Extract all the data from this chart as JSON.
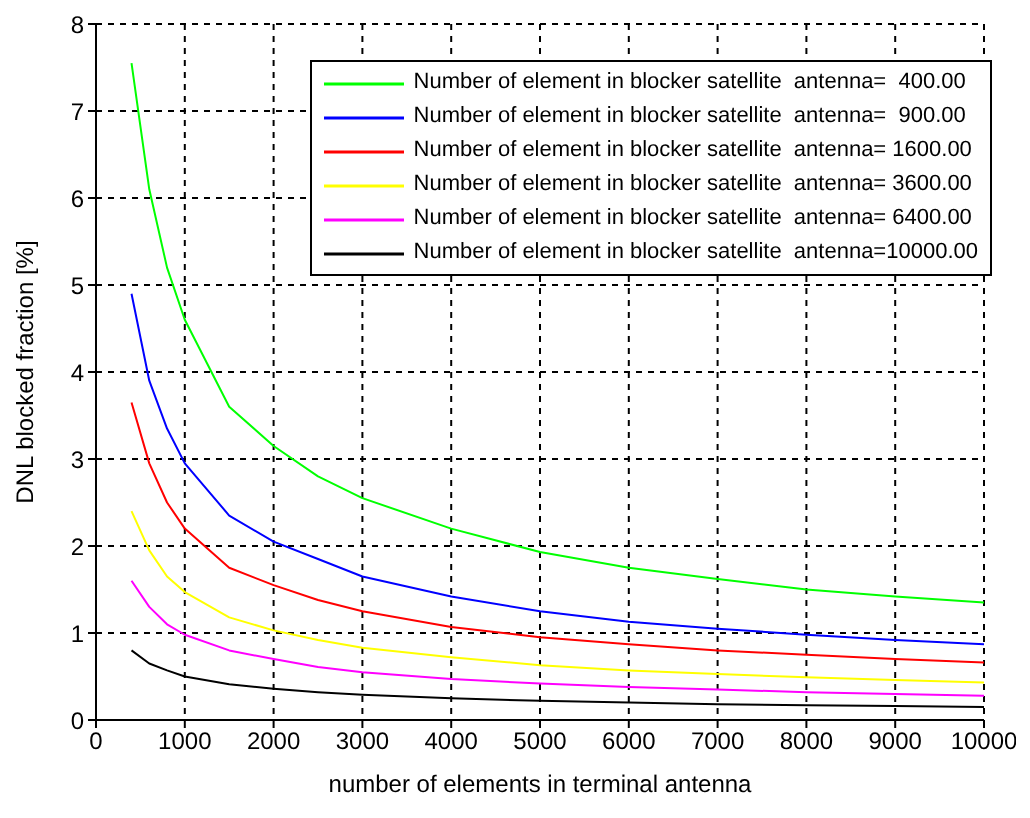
{
  "chart_data": {
    "type": "line",
    "xlabel": "number of elements in terminal antenna",
    "ylabel": "DNL blocked fraction [%]",
    "x": [
      400,
      600,
      800,
      1000,
      1500,
      2000,
      2500,
      3000,
      4000,
      5000,
      6000,
      7000,
      8000,
      9000,
      10000
    ],
    "series": [
      {
        "name": "Number of element in blocker satellite  antenna=  400.00",
        "color": "#00ff00",
        "values": [
          7.55,
          6.1,
          5.2,
          4.6,
          3.6,
          3.15,
          2.8,
          2.55,
          2.2,
          1.93,
          1.75,
          1.62,
          1.5,
          1.42,
          1.35
        ]
      },
      {
        "name": "Number of element in blocker satellite  antenna=  900.00",
        "color": "#0000ff",
        "values": [
          4.9,
          3.9,
          3.35,
          2.95,
          2.35,
          2.05,
          1.85,
          1.65,
          1.42,
          1.25,
          1.13,
          1.05,
          0.98,
          0.92,
          0.87
        ]
      },
      {
        "name": "Number of element in blocker satellite  antenna= 1600.00",
        "color": "#ff0000",
        "values": [
          3.65,
          2.95,
          2.5,
          2.2,
          1.75,
          1.55,
          1.38,
          1.25,
          1.07,
          0.95,
          0.87,
          0.8,
          0.75,
          0.7,
          0.66
        ]
      },
      {
        "name": "Number of element in blocker satellite  antenna= 3600.00",
        "color": "#ffff00",
        "values": [
          2.4,
          1.95,
          1.65,
          1.47,
          1.18,
          1.03,
          0.92,
          0.83,
          0.72,
          0.63,
          0.57,
          0.53,
          0.49,
          0.46,
          0.43
        ]
      },
      {
        "name": "Number of element in blocker satellite  antenna= 6400.00",
        "color": "#ff00ff",
        "values": [
          1.6,
          1.3,
          1.1,
          0.98,
          0.8,
          0.7,
          0.61,
          0.55,
          0.47,
          0.42,
          0.38,
          0.35,
          0.32,
          0.3,
          0.28
        ]
      },
      {
        "name": "Number of element in blocker satellite  antenna=10000.00",
        "color": "#000000",
        "values": [
          0.8,
          0.65,
          0.57,
          0.5,
          0.41,
          0.36,
          0.32,
          0.29,
          0.25,
          0.22,
          0.2,
          0.18,
          0.17,
          0.16,
          0.15
        ]
      }
    ],
    "xlim": [
      0,
      10000
    ],
    "xticks": [
      0,
      1000,
      2000,
      3000,
      4000,
      5000,
      6000,
      7000,
      8000,
      9000,
      10000
    ],
    "ylim": [
      0,
      8
    ],
    "yticks": [
      0,
      1,
      2,
      3,
      4,
      5,
      6,
      7,
      8
    ],
    "grid": true,
    "legend": "top right",
    "marker": "none",
    "line_style": "solid"
  }
}
